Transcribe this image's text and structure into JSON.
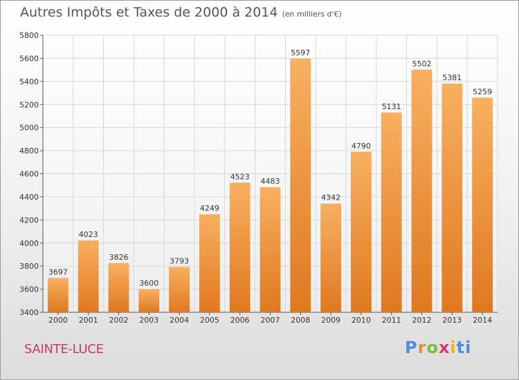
{
  "title": "Autres Impôts et Taxes de 2000 à 2014",
  "unit": "(en milliers d'€)",
  "city": "SAINTE-LUCE",
  "brand": [
    "P",
    "r",
    "o",
    "x",
    "i",
    "ti"
  ],
  "colors": {
    "bar_light": "#f7b060",
    "bar_dark": "#e07820",
    "grid": "#d8d8d8",
    "axis": "#555555"
  },
  "chart_data": {
    "type": "bar",
    "title": "Autres Impôts et Taxes de 2000 à 2014",
    "categories": [
      "2000",
      "2001",
      "2002",
      "2003",
      "2004",
      "2005",
      "2006",
      "2007",
      "2008",
      "2009",
      "2010",
      "2011",
      "2012",
      "2013",
      "2014"
    ],
    "values": [
      3697,
      4023,
      3826,
      3600,
      3793,
      4249,
      4523,
      4483,
      5597,
      4342,
      4790,
      5131,
      5502,
      5381,
      5259
    ],
    "ylim": [
      3400,
      5800
    ],
    "yticks": [
      3400,
      3600,
      3800,
      4000,
      4200,
      4400,
      4600,
      4800,
      5000,
      5200,
      5400,
      5600,
      5800
    ],
    "grid": true
  }
}
